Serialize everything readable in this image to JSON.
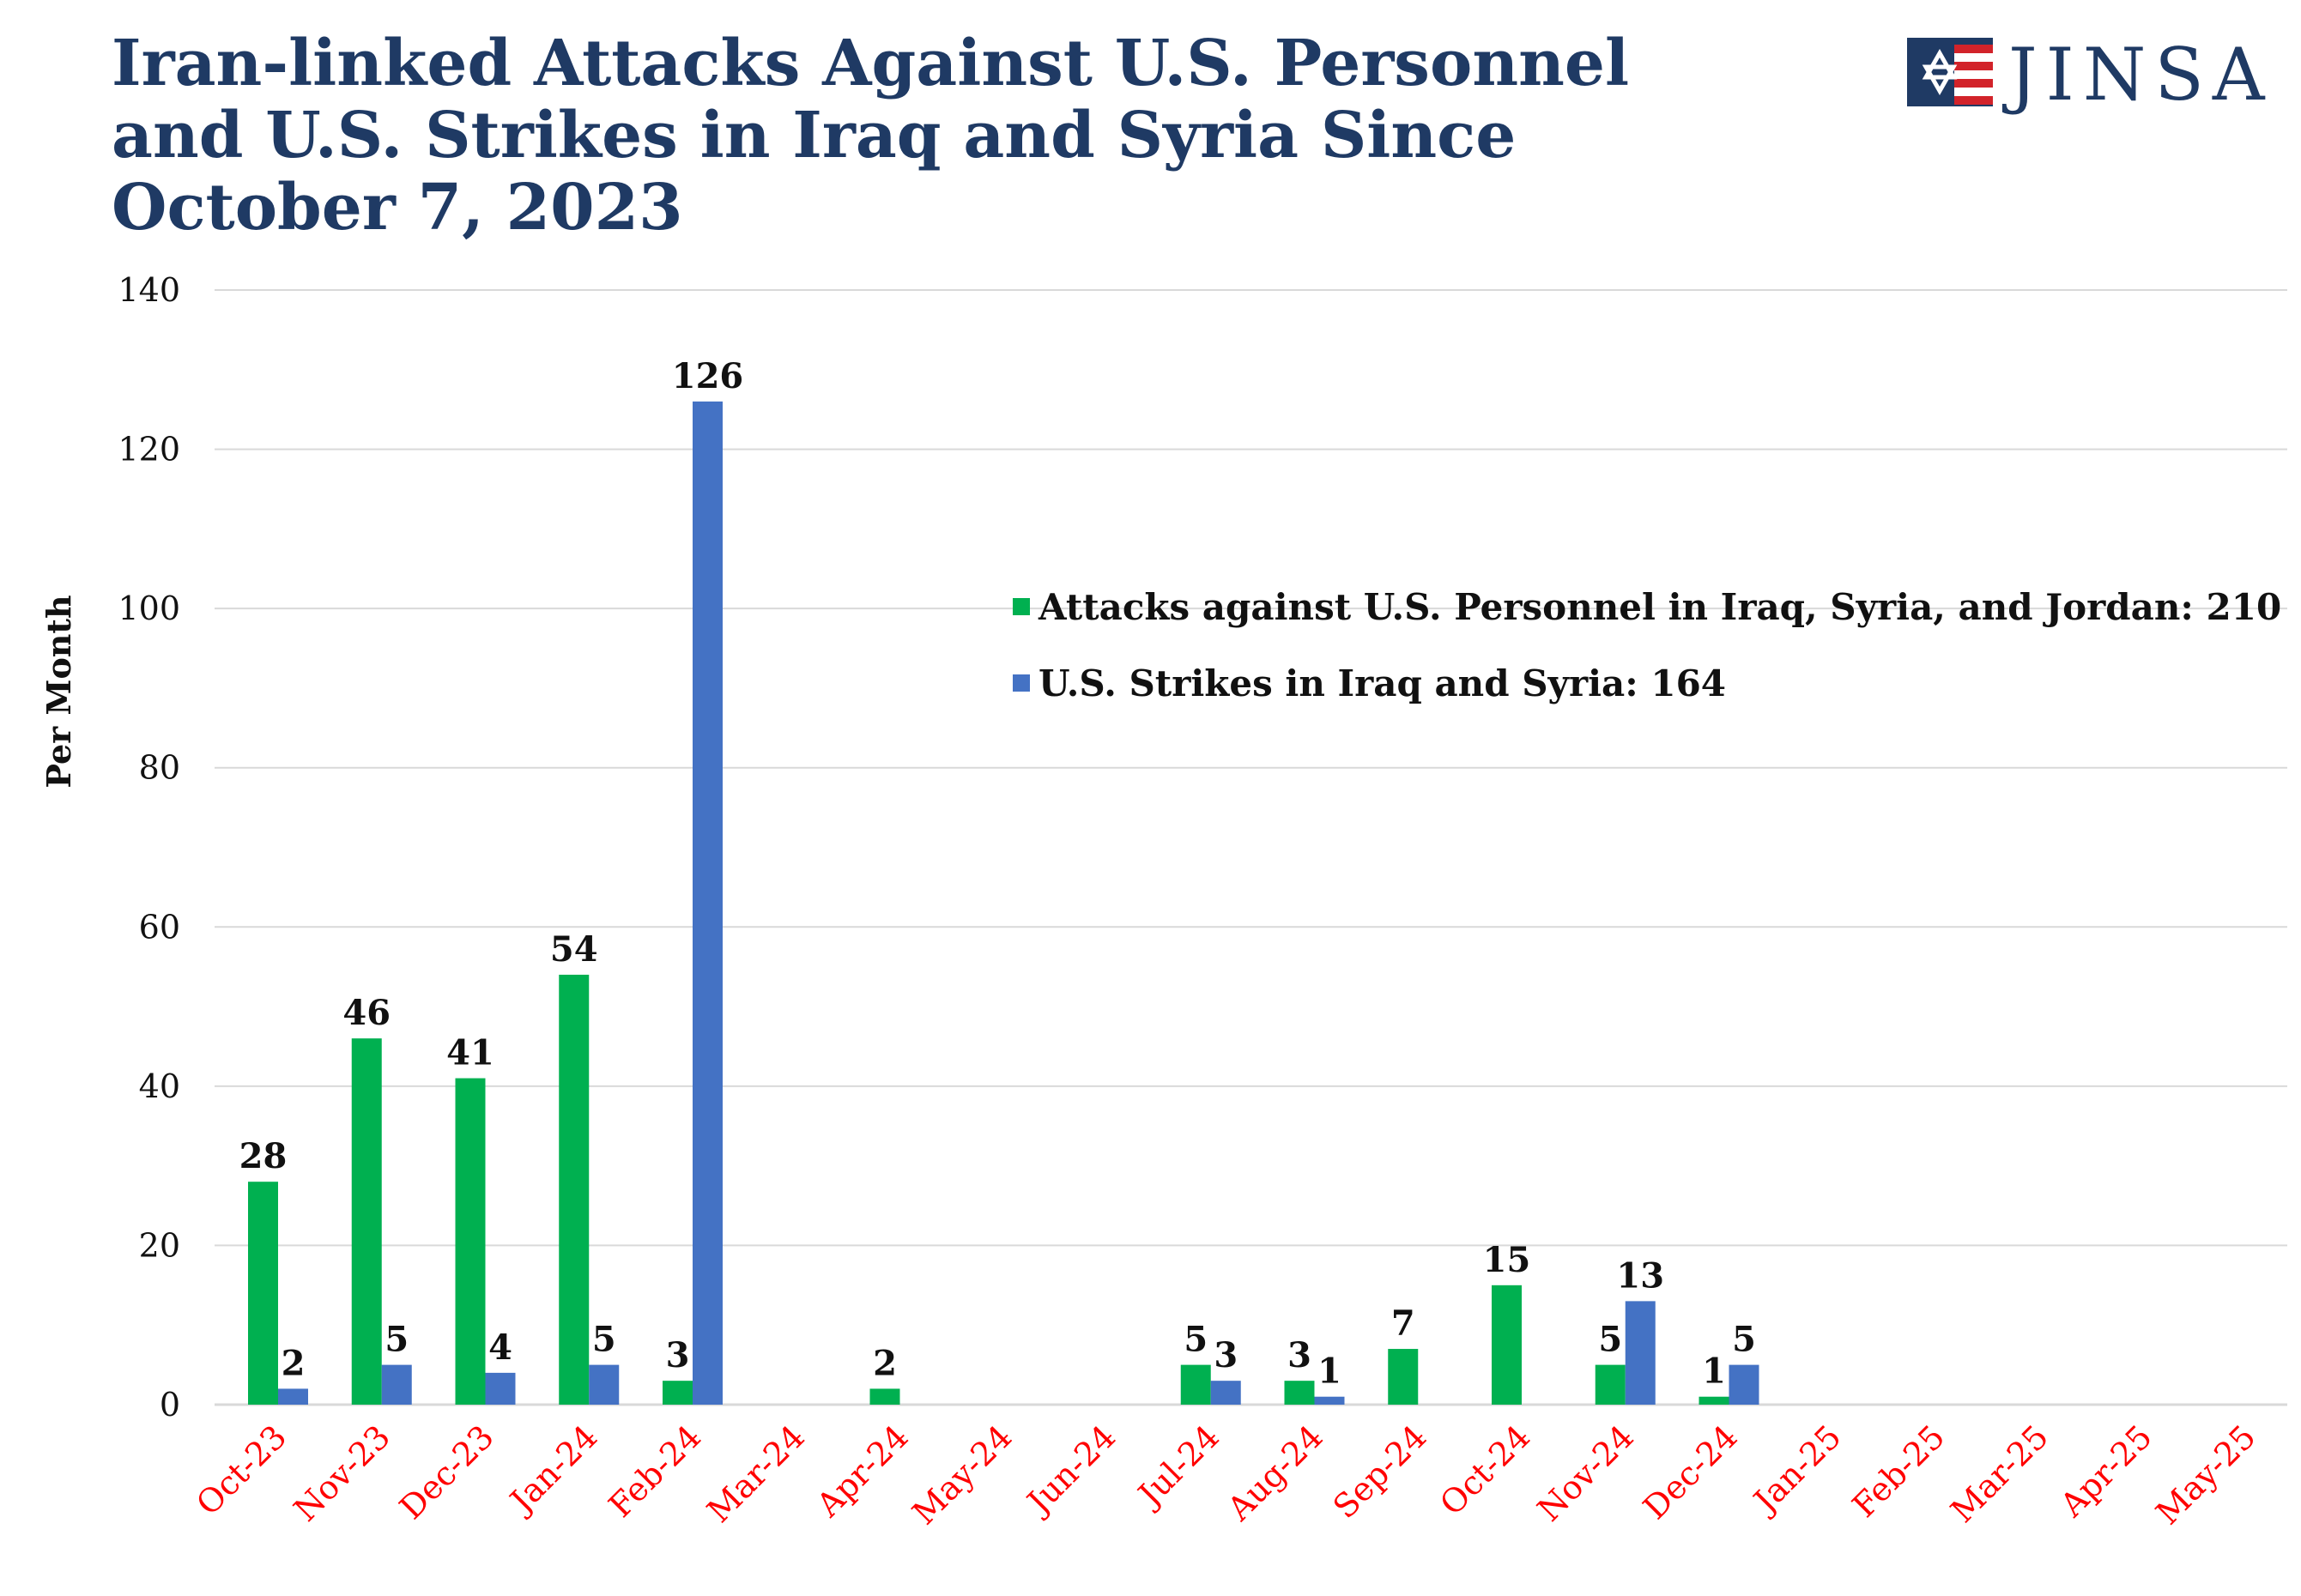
{
  "brand": {
    "name": "JINSA",
    "colors": {
      "navy": "#1f3a64",
      "red": "#d2232a"
    }
  },
  "chart_data": {
    "type": "bar",
    "title_lines": [
      "Iran-linked Attacks Against U.S. Personnel",
      "and U.S. Strikes in Iraq and Syria Since",
      "October 7, 2023"
    ],
    "ylabel": "Per Month",
    "xlabel": "",
    "ylim": [
      0,
      140
    ],
    "yticks": [
      0,
      20,
      40,
      60,
      80,
      100,
      120,
      140
    ],
    "grid": true,
    "legend_position": "right-middle",
    "categories": [
      "Oct-23",
      "Nov-23",
      "Dec-23",
      "Jan-24",
      "Feb-24",
      "Mar-24",
      "Apr-24",
      "May-24",
      "Jun-24",
      "Jul-24",
      "Aug-24",
      "Sep-24",
      "Oct-24",
      "Nov-24",
      "Dec-24",
      "Jan-25",
      "Feb-25",
      "Mar-25",
      "Apr-25",
      "May-25"
    ],
    "series": [
      {
        "name": "Attacks against U.S. Personnel in Iraq, Syria, and Jordan: 210",
        "color": "#00b050",
        "values": [
          28,
          46,
          41,
          54,
          3,
          null,
          2,
          null,
          null,
          5,
          3,
          7,
          15,
          5,
          1,
          null,
          null,
          null,
          null,
          null
        ]
      },
      {
        "name": "U.S. Strikes in Iraq and Syria: 164",
        "color": "#4472c4",
        "values": [
          2,
          5,
          4,
          5,
          126,
          null,
          null,
          null,
          null,
          3,
          1,
          null,
          null,
          13,
          5,
          null,
          null,
          null,
          null,
          null
        ]
      }
    ],
    "tick_label_color": "#ff0000",
    "grid_color": "#d9d9d9"
  }
}
